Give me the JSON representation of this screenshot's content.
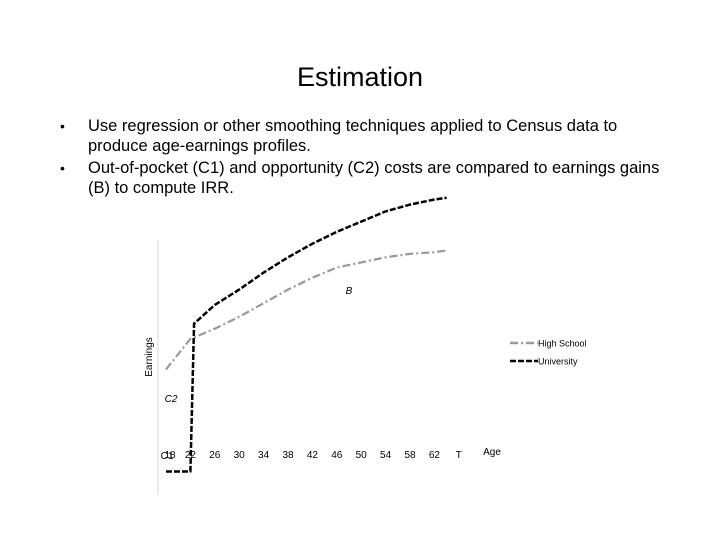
{
  "slide": {
    "title": "Estimation",
    "bullets": [
      "Use regression or other smoothing techniques applied to Census data to produce age-earnings profiles.",
      "Out-of-pocket (C1) and opportunity (C2) costs are compared to earnings gains (B) to compute IRR."
    ]
  },
  "chart_data": {
    "type": "line",
    "ylabel": "Earnings",
    "xlabel": "Age",
    "x_tick_labels": [
      "18",
      "22",
      "26",
      "30",
      "34",
      "38",
      "42",
      "46",
      "50",
      "54",
      "58",
      "62",
      "T"
    ],
    "x_tick_overlay": "C1",
    "annotations": {
      "B": "B",
      "C2": "C2"
    },
    "legend_position": "right",
    "series": [
      {
        "name": "High School",
        "color": "#999999",
        "style": "dash-dot",
        "x": [
          18,
          20,
          22,
          26,
          30,
          34,
          38,
          42,
          46,
          50,
          54,
          58,
          62,
          64
        ],
        "y": [
          5,
          14,
          23,
          29,
          36,
          44,
          52,
          59,
          65,
          68,
          71,
          73,
          74,
          75
        ]
      },
      {
        "name": "University",
        "color": "#000000",
        "style": "dashed",
        "x": [
          18,
          20,
          22,
          22.6,
          26,
          30,
          34,
          38,
          42,
          46,
          50,
          54,
          58,
          62,
          64
        ],
        "y": [
          -55,
          -55,
          -55,
          32,
          43,
          52,
          62,
          71,
          79,
          86,
          92,
          98,
          102,
          105,
          106
        ]
      }
    ]
  }
}
